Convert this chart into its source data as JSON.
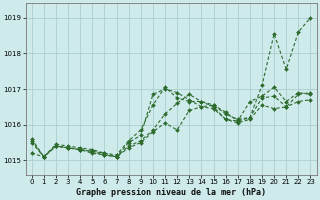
{
  "title": "Graphe pression niveau de la mer (hPa)",
  "bg_color": "#ceeaea",
  "grid_color": "#aacece",
  "line_color": "#2d6b2d",
  "xlim": [
    -0.5,
    23.5
  ],
  "ylim": [
    1014.6,
    1019.4
  ],
  "yticks": [
    1015,
    1016,
    1017,
    1018,
    1019
  ],
  "xticks": [
    0,
    1,
    2,
    3,
    4,
    5,
    6,
    7,
    8,
    9,
    10,
    11,
    12,
    13,
    14,
    15,
    16,
    17,
    18,
    19,
    20,
    21,
    22,
    23
  ],
  "series": [
    {
      "x": [
        0,
        1,
        2,
        3,
        4,
        5,
        6,
        7,
        8,
        9,
        10,
        11,
        12,
        13,
        14,
        15,
        16,
        17,
        18,
        19,
        20,
        21,
        22,
        23
      ],
      "y": [
        1015.2,
        1015.1,
        1015.4,
        1015.35,
        1015.3,
        1015.2,
        1015.15,
        1015.1,
        1015.5,
        1015.7,
        1016.85,
        1017.0,
        1016.9,
        1016.7,
        1016.5,
        1016.55,
        1016.3,
        1016.15,
        1016.2,
        1017.1,
        1018.55,
        1017.55,
        1018.6,
        1019.0
      ]
    },
    {
      "x": [
        0,
        1,
        2,
        3,
        4,
        5,
        6,
        7,
        8,
        9,
        10,
        11,
        12,
        13,
        14,
        15,
        16,
        17,
        18,
        19,
        20,
        21,
        22,
        23
      ],
      "y": [
        1015.5,
        1015.1,
        1015.4,
        1015.35,
        1015.3,
        1015.25,
        1015.2,
        1015.15,
        1015.55,
        1015.85,
        1016.55,
        1017.05,
        1016.75,
        1016.65,
        1016.65,
        1016.55,
        1016.35,
        1016.1,
        1016.65,
        1016.8,
        1017.05,
        1016.65,
        1016.9,
        1016.85
      ]
    },
    {
      "x": [
        0,
        1,
        2,
        3,
        4,
        5,
        6,
        7,
        8,
        9,
        10,
        11,
        12,
        13,
        14,
        15,
        16,
        17,
        18,
        19,
        20,
        21,
        22,
        23
      ],
      "y": [
        1015.55,
        1015.1,
        1015.4,
        1015.35,
        1015.3,
        1015.25,
        1015.15,
        1015.1,
        1015.35,
        1015.5,
        1015.8,
        1016.05,
        1015.85,
        1016.4,
        1016.5,
        1016.45,
        1016.15,
        1016.05,
        1016.15,
        1016.55,
        1016.45,
        1016.5,
        1016.85,
        1016.9
      ]
    },
    {
      "x": [
        0,
        1,
        2,
        3,
        4,
        5,
        6,
        7,
        8,
        9,
        10,
        11,
        12,
        13,
        14,
        15,
        16,
        17,
        18,
        19,
        20,
        21,
        22,
        23
      ],
      "y": [
        1015.6,
        1015.1,
        1015.45,
        1015.4,
        1015.35,
        1015.3,
        1015.2,
        1015.1,
        1015.4,
        1015.55,
        1015.85,
        1016.3,
        1016.6,
        1016.85,
        1016.65,
        1016.5,
        1016.15,
        1016.1,
        1016.2,
        1016.75,
        1016.8,
        1016.5,
        1016.65,
        1016.7
      ]
    }
  ]
}
